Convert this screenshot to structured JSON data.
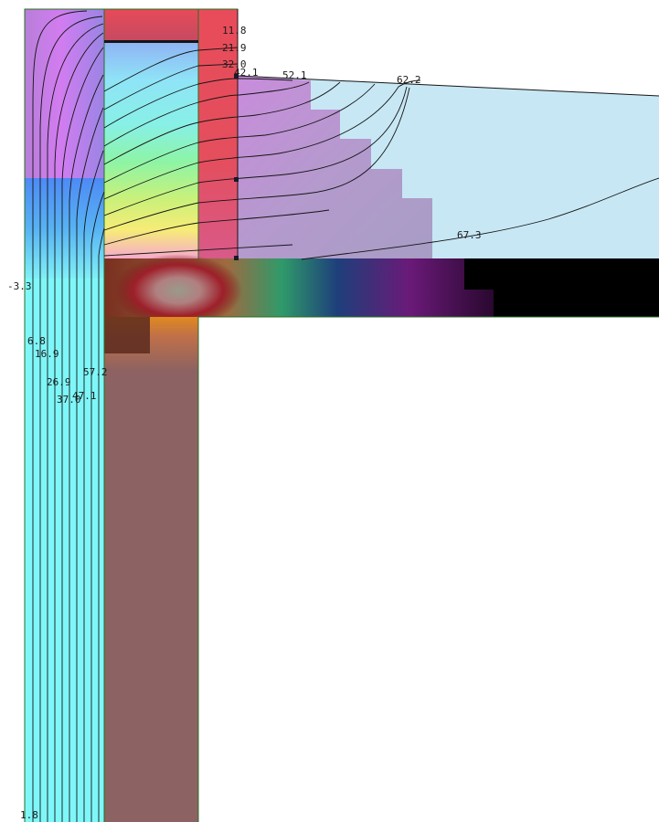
{
  "diagram": {
    "labels": [
      {
        "id": "left-top",
        "text": "-3.3"
      },
      {
        "id": "wall-1",
        "text": "6.8"
      },
      {
        "id": "wall-2",
        "text": "16.9"
      },
      {
        "id": "wall-3",
        "text": "26.9"
      },
      {
        "id": "wall-4",
        "text": "37.0"
      },
      {
        "id": "wall-5",
        "text": "47.1"
      },
      {
        "id": "wall-6",
        "text": "57.2"
      },
      {
        "id": "bottom",
        "text": "1.8"
      },
      {
        "id": "top-1",
        "text": "11.8"
      },
      {
        "id": "top-2",
        "text": "21.9"
      },
      {
        "id": "top-3",
        "text": "32.0"
      },
      {
        "id": "top-4",
        "text": "42.1"
      },
      {
        "id": "top-5",
        "text": "52.1"
      },
      {
        "id": "top-6",
        "text": "62.2"
      },
      {
        "id": "right",
        "text": "67.3"
      }
    ],
    "colors": {
      "insulation_left": "#7ff7f9",
      "roof_fill": "#c7e7f4",
      "red_layer": "#e05060",
      "brown_wall": "#8c6262",
      "dark_beam": "#000000",
      "violet": "#b48fd6",
      "green_edge": "#2a6e22"
    }
  }
}
